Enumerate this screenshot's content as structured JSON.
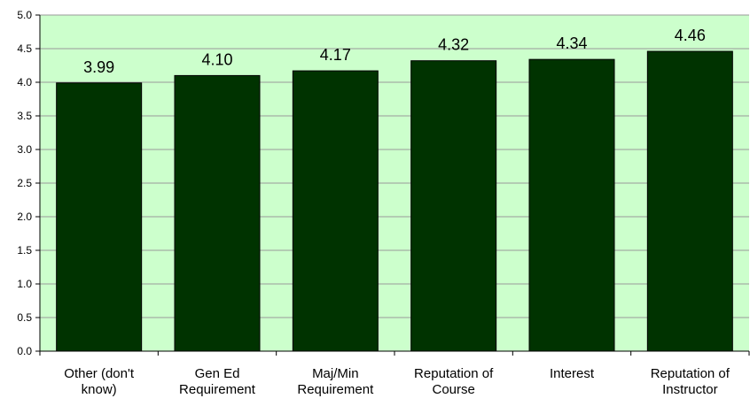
{
  "chart_data": {
    "type": "bar",
    "categories": [
      [
        "Other (don't",
        "know)"
      ],
      [
        "Gen Ed",
        "Requirement"
      ],
      [
        "Maj/Min",
        "Requirement"
      ],
      [
        "Reputation of",
        "Course"
      ],
      [
        "Interest"
      ],
      [
        "Reputation of",
        "Instructor"
      ]
    ],
    "values": [
      3.99,
      4.1,
      4.17,
      4.32,
      4.34,
      4.46
    ],
    "value_labels": [
      "3.99",
      "4.10",
      "4.17",
      "4.32",
      "4.34",
      "4.46"
    ],
    "ylim": [
      0,
      5
    ],
    "yticks": [
      "0.0",
      "0.5",
      "1.0",
      "1.5",
      "2.0",
      "2.5",
      "3.0",
      "3.5",
      "4.0",
      "4.5",
      "5.0"
    ],
    "grid": true,
    "colors": {
      "plot_bg": "#ccffcc",
      "bar": "#003300",
      "grid": "#9a9a9a",
      "axis": "#000000"
    }
  }
}
